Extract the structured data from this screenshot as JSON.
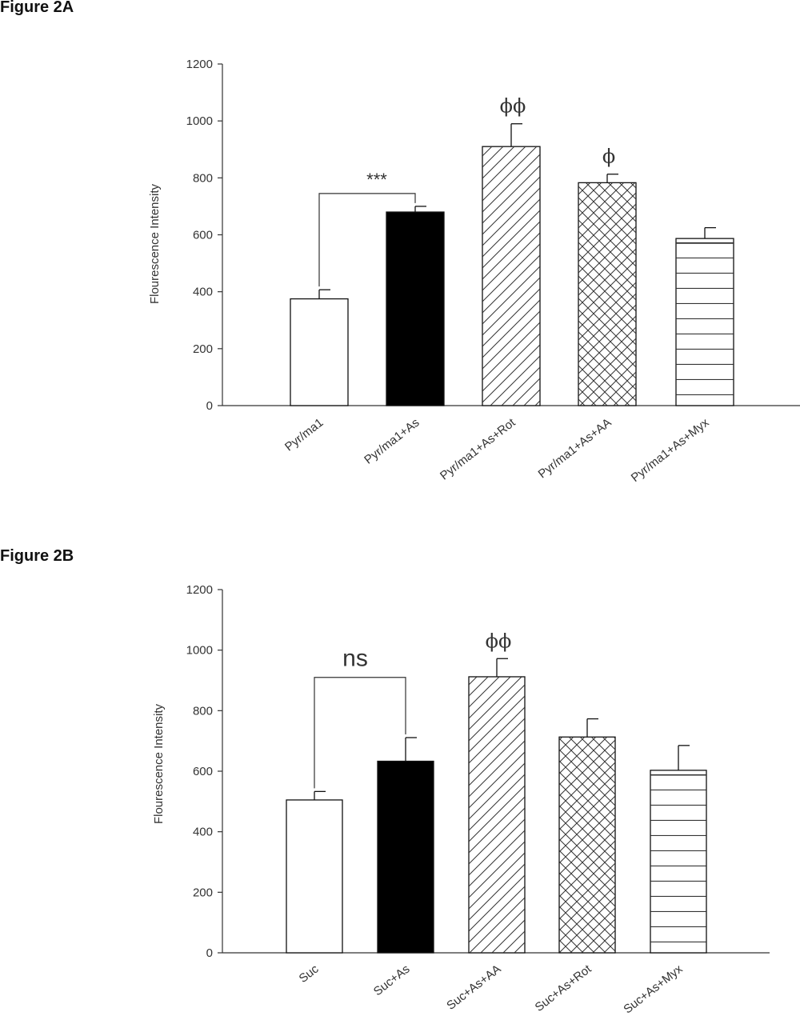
{
  "figures": [
    {
      "label": "Figure 2A"
    },
    {
      "label": "Figure 2B"
    }
  ],
  "colors": {
    "axis": "#333333",
    "bar_edge": "#111111",
    "solid_fill": "#000000",
    "open_fill": "#ffffff",
    "phi_B": "#6b3a7a"
  },
  "chart_data": [
    {
      "type": "bar",
      "ylabel": "Flourescence Intensity",
      "xlabel": "",
      "ylim": [
        0,
        1200
      ],
      "yticks": [
        0,
        200,
        400,
        600,
        800,
        1000,
        1200
      ],
      "categories": [
        "Pyr/ma1",
        "Pyr/ma1+As",
        "Pyr/ma1+As+Rot",
        "Pyr/ma1+As+AA",
        "Pyr/ma1+As+Myx"
      ],
      "values": [
        375,
        680,
        910,
        783,
        587
      ],
      "errors": [
        32,
        20,
        80,
        30,
        38
      ],
      "patterns": [
        "open",
        "solid",
        "diagonal",
        "crosshatch",
        "horizontal"
      ],
      "annotations": [
        {
          "text": "***",
          "type": "bracket",
          "from": 0,
          "to": 1,
          "level": 745
        },
        {
          "text": "ϕϕ",
          "bar": 2
        },
        {
          "text": "ϕ",
          "bar": 3
        }
      ]
    },
    {
      "type": "bar",
      "ylabel": "Flourescence Intensity",
      "xlabel": "",
      "ylim": [
        0,
        1200
      ],
      "yticks": [
        0,
        200,
        400,
        600,
        800,
        1000,
        1200
      ],
      "categories": [
        "Suc",
        "Suc+As",
        "Suc+As+AA",
        "Suc+As+Rot",
        "Suc+As+Myx"
      ],
      "values": [
        505,
        633,
        912,
        713,
        603
      ],
      "errors": [
        28,
        78,
        60,
        60,
        82
      ],
      "patterns": [
        "open",
        "solid",
        "diagonal",
        "crosshatch",
        "horizontal"
      ],
      "annotations": [
        {
          "text": "ns",
          "type": "bracket",
          "from": 0,
          "to": 1,
          "level": 910
        },
        {
          "text": "ϕϕ",
          "bar": 2
        }
      ]
    }
  ]
}
